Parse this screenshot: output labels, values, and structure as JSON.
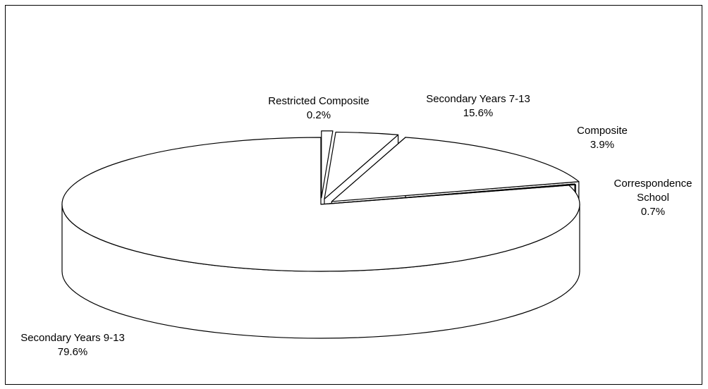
{
  "chart_data": {
    "type": "pie",
    "style": "3d-exploded",
    "categories": [
      "Secondary Years 9-13",
      "Restricted Composite",
      "Secondary Years 7-13",
      "Composite",
      "Correspondence School"
    ],
    "values": [
      79.6,
      0.2,
      15.6,
      3.9,
      0.7
    ],
    "labels": [
      {
        "name_lines": [
          "Secondary Years 9-13"
        ],
        "percent": "79.6%"
      },
      {
        "name_lines": [
          "Restricted Composite"
        ],
        "percent": "0.2%"
      },
      {
        "name_lines": [
          "Secondary Years 7-13"
        ],
        "percent": "15.6%"
      },
      {
        "name_lines": [
          "Composite"
        ],
        "percent": "3.9%"
      },
      {
        "name_lines": [
          "Correspondence",
          "School"
        ],
        "percent": "0.7%"
      }
    ],
    "title": "",
    "legend": "none",
    "colors": {
      "fill": "#ffffff",
      "outline": "#000000",
      "text": "#000000"
    }
  }
}
